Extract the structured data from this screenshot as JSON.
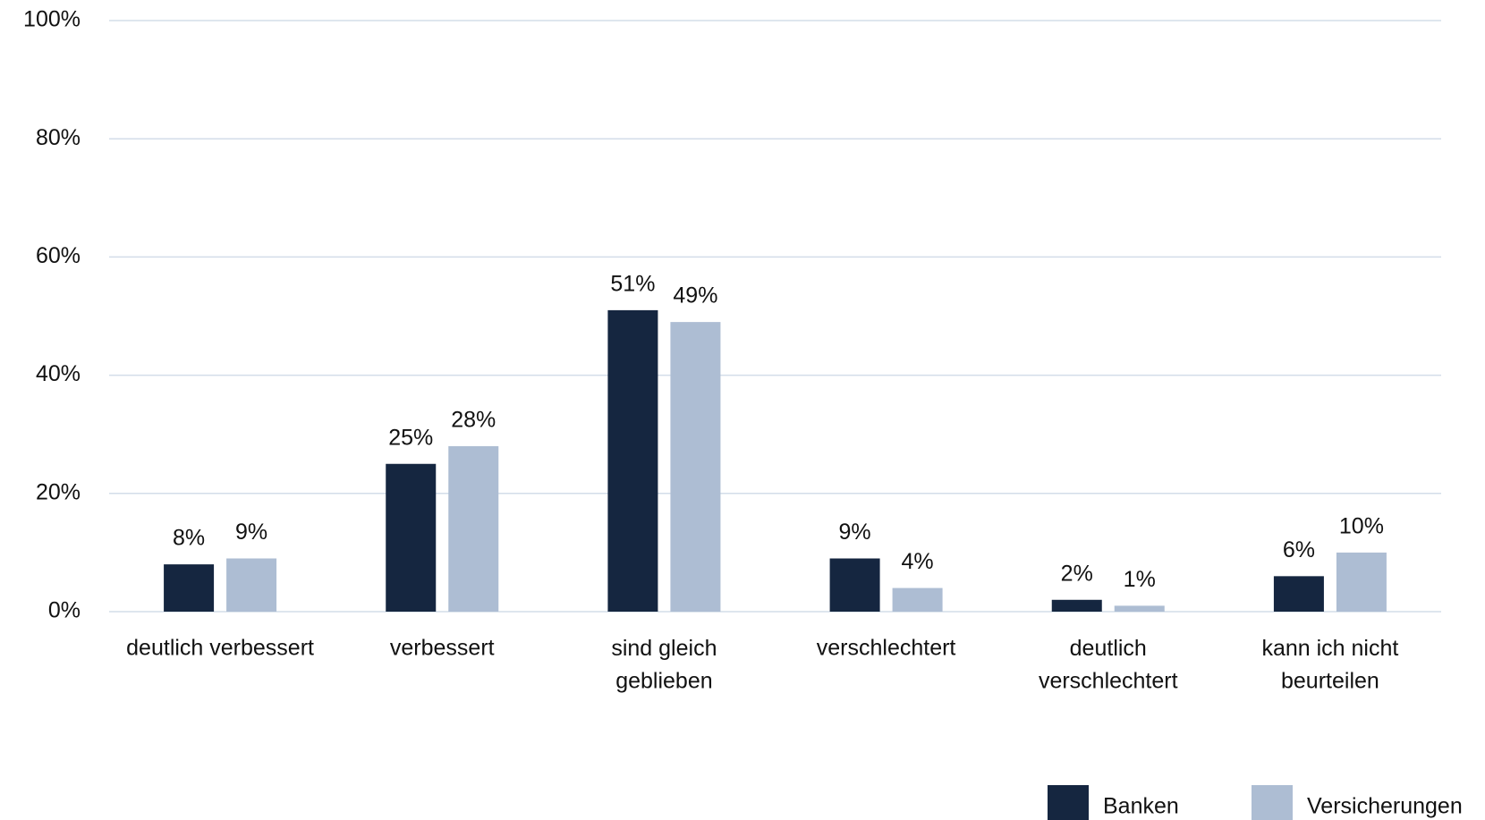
{
  "chart_data": {
    "type": "bar",
    "categories": [
      "deutlich verbessert",
      "verbessert",
      "sind gleich\ngeblieben",
      "verschlechtert",
      "deutlich\nverschlechtert",
      "kann ich nicht\nbeurteilen"
    ],
    "series": [
      {
        "name": "Banken",
        "color": "#152640",
        "values": [
          8,
          25,
          51,
          9,
          2,
          6
        ],
        "value_labels": [
          "8%",
          "25%",
          "51%",
          "9%",
          "2%",
          "6%"
        ]
      },
      {
        "name": "Versicherungen",
        "color": "#adbdd3",
        "values": [
          9,
          28,
          49,
          4,
          1,
          10
        ],
        "value_labels": [
          "9%",
          "28%",
          "49%",
          "4%",
          "1%",
          "10%"
        ]
      }
    ],
    "ylim": [
      0,
      100
    ],
    "yticks": [
      {
        "value": 0,
        "label": "0%"
      },
      {
        "value": 20,
        "label": "20%"
      },
      {
        "value": 40,
        "label": "40%"
      },
      {
        "value": 60,
        "label": "60%"
      },
      {
        "value": 80,
        "label": "80%"
      },
      {
        "value": 100,
        "label": "100%"
      }
    ],
    "grid": true,
    "legend": "bottom-right"
  }
}
